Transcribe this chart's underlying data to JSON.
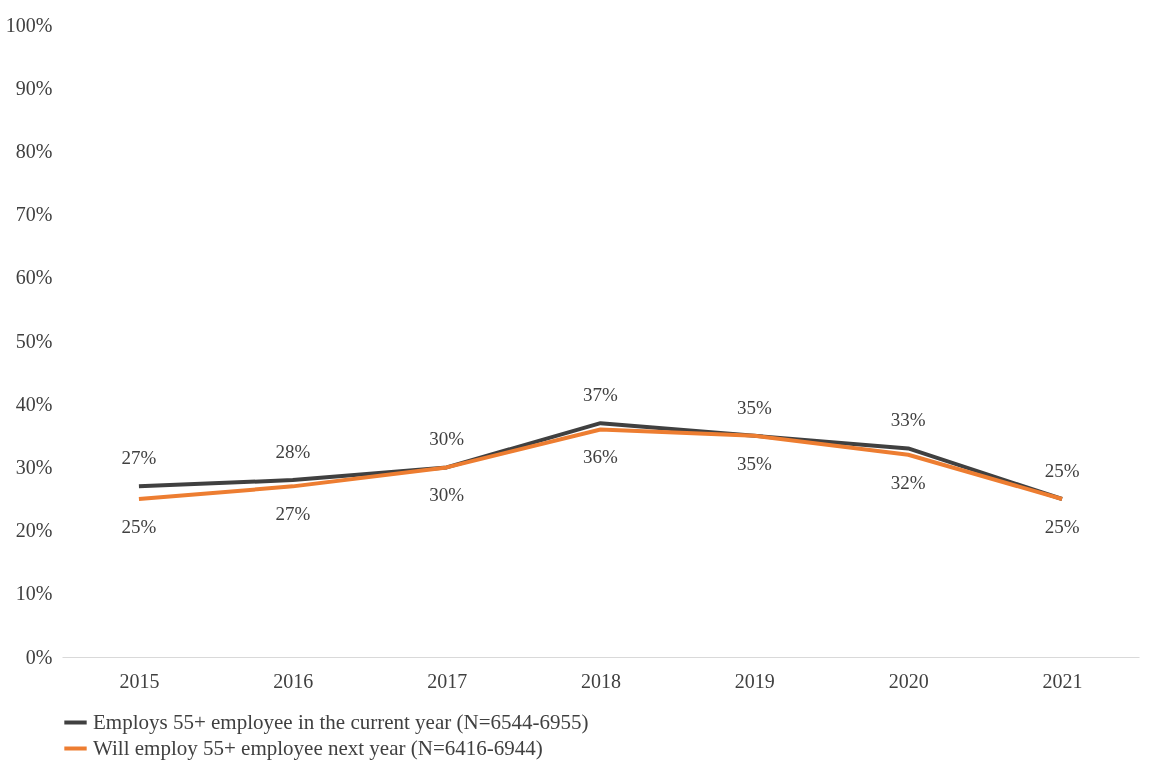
{
  "chart_data": {
    "type": "line",
    "categories": [
      "2015",
      "2016",
      "2017",
      "2018",
      "2019",
      "2020",
      "2021"
    ],
    "series": [
      {
        "name": "Employs 55+ employee in the current year (N=6544-6955)",
        "color": "#404040",
        "values": [
          27,
          28,
          30,
          37,
          35,
          33,
          25
        ],
        "value_labels": [
          "27%",
          "28%",
          "30%",
          "37%",
          "35%",
          "33%",
          "25%"
        ]
      },
      {
        "name": "Will employ 55+ employee next year (N=6416-6944)",
        "color": "#ed7d31",
        "values": [
          25,
          27,
          30,
          36,
          35,
          32,
          25
        ],
        "value_labels": [
          "25%",
          "27%",
          "30%",
          "36%",
          "35%",
          "32%",
          "25%"
        ]
      }
    ],
    "ylim": [
      0,
      100
    ],
    "yticks": [
      {
        "value": 0,
        "label": "0%"
      },
      {
        "value": 10,
        "label": "10%"
      },
      {
        "value": 20,
        "label": "20%"
      },
      {
        "value": 30,
        "label": "30%"
      },
      {
        "value": 40,
        "label": "40%"
      },
      {
        "value": 50,
        "label": "50%"
      },
      {
        "value": 60,
        "label": "60%"
      },
      {
        "value": 70,
        "label": "70%"
      },
      {
        "value": 80,
        "label": "80%"
      },
      {
        "value": 90,
        "label": "90%"
      },
      {
        "value": 100,
        "label": "100%"
      }
    ],
    "grid": false,
    "legend": "bottom",
    "marker": "none",
    "line_style": "solid"
  }
}
